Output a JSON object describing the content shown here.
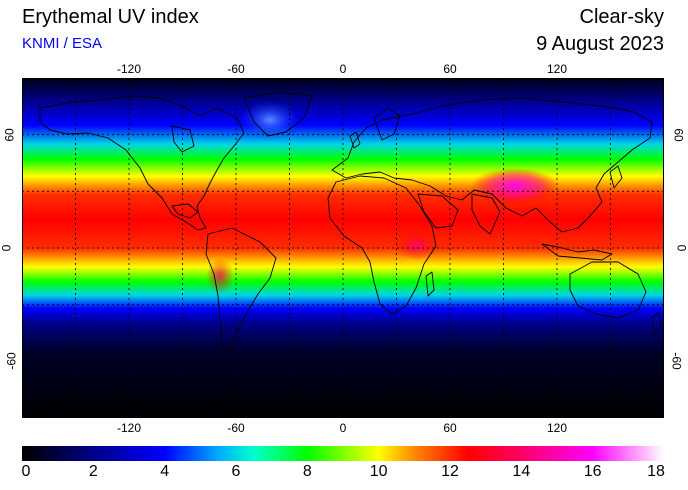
{
  "header": {
    "title": "Erythemal UV index",
    "credit": "KNMI / ESA",
    "mode": "Clear-sky",
    "date": "9 August 2023"
  },
  "map": {
    "lon_ticks": [
      "-120",
      "-60",
      "0",
      "60",
      "120"
    ],
    "lat_ticks": [
      "60",
      "0",
      "-60"
    ],
    "lon_values": [
      -120,
      -60,
      0,
      60,
      120
    ],
    "lat_values": [
      60,
      0,
      -60
    ],
    "lon_range": [
      -180,
      180
    ],
    "lat_range": [
      -90,
      90
    ],
    "grid_lons": [
      -150,
      -120,
      -90,
      -60,
      -30,
      0,
      30,
      60,
      90,
      120,
      150
    ],
    "grid_lats": [
      60,
      30,
      0,
      -30,
      -60
    ],
    "uv_profile": [
      {
        "lat": 90,
        "uv": 0.3
      },
      {
        "lat": 75,
        "uv": 2.5
      },
      {
        "lat": 65,
        "uv": 4
      },
      {
        "lat": 55,
        "uv": 6
      },
      {
        "lat": 47,
        "uv": 8
      },
      {
        "lat": 38,
        "uv": 10
      },
      {
        "lat": 28,
        "uv": 12
      },
      {
        "lat": 15,
        "uv": 12.5
      },
      {
        "lat": 0,
        "uv": 12
      },
      {
        "lat": -10,
        "uv": 10
      },
      {
        "lat": -18,
        "uv": 8
      },
      {
        "lat": -25,
        "uv": 6
      },
      {
        "lat": -32,
        "uv": 4
      },
      {
        "lat": -40,
        "uv": 2
      },
      {
        "lat": -55,
        "uv": 0.6
      },
      {
        "lat": -90,
        "uv": 0
      }
    ]
  },
  "colorbar": {
    "labels": [
      "0",
      "2",
      "4",
      "6",
      "8",
      "10",
      "12",
      "14",
      "16",
      "18"
    ],
    "values": [
      0,
      2,
      4,
      6,
      8,
      10,
      12,
      14,
      16,
      18
    ],
    "min": 0,
    "max": 18,
    "stops": [
      {
        "v": 0,
        "color": "#000000"
      },
      {
        "v": 2,
        "color": "#000088"
      },
      {
        "v": 4,
        "color": "#0000ff"
      },
      {
        "v": 5.5,
        "color": "#00aaff"
      },
      {
        "v": 6.5,
        "color": "#00ffcc"
      },
      {
        "v": 8,
        "color": "#00ff00"
      },
      {
        "v": 10,
        "color": "#ffff00"
      },
      {
        "v": 11,
        "color": "#ff8800"
      },
      {
        "v": 12.5,
        "color": "#ff0000"
      },
      {
        "v": 14,
        "color": "#ff0066"
      },
      {
        "v": 16,
        "color": "#ff00ff"
      },
      {
        "v": 18,
        "color": "#ffffff"
      }
    ]
  }
}
